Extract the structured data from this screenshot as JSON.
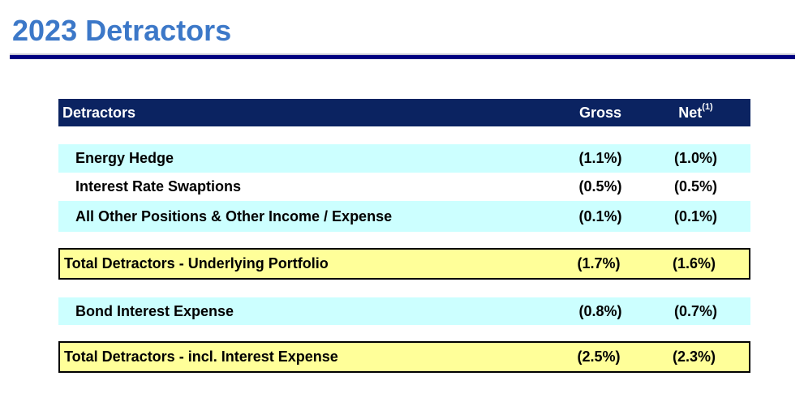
{
  "page": {
    "title": "2023 Detractors",
    "title_color": "#3C78C8",
    "rule_color": "#000080"
  },
  "table": {
    "header": {
      "label": "Detractors",
      "gross": "Gross",
      "net": "Net",
      "net_sup": "(1)"
    },
    "colors": {
      "header_bg": "#0B2361",
      "header_text": "#FFFFFF",
      "row_cyan": "#CCFFFF",
      "row_white": "#FFFFFF",
      "total_yellow": "#FFFF99",
      "total_border": "#000000",
      "body_text": "#000000"
    },
    "rows": [
      {
        "label": "Energy Hedge",
        "gross": "(1.1%)",
        "net": "(1.0%)"
      },
      {
        "label": "Interest Rate Swaptions",
        "gross": "(0.5%)",
        "net": "(0.5%)"
      },
      {
        "label": "All Other Positions & Other Income / Expense",
        "gross": "(0.1%)",
        "net": "(0.1%)"
      },
      {
        "label": "Total Detractors - Underlying Portfolio",
        "gross": "(1.7%)",
        "net": "(1.6%)"
      },
      {
        "label": "Bond Interest Expense",
        "gross": "(0.8%)",
        "net": "(0.7%)"
      },
      {
        "label": "Total Detractors - incl. Interest Expense",
        "gross": "(2.5%)",
        "net": "(2.3%)"
      }
    ]
  }
}
